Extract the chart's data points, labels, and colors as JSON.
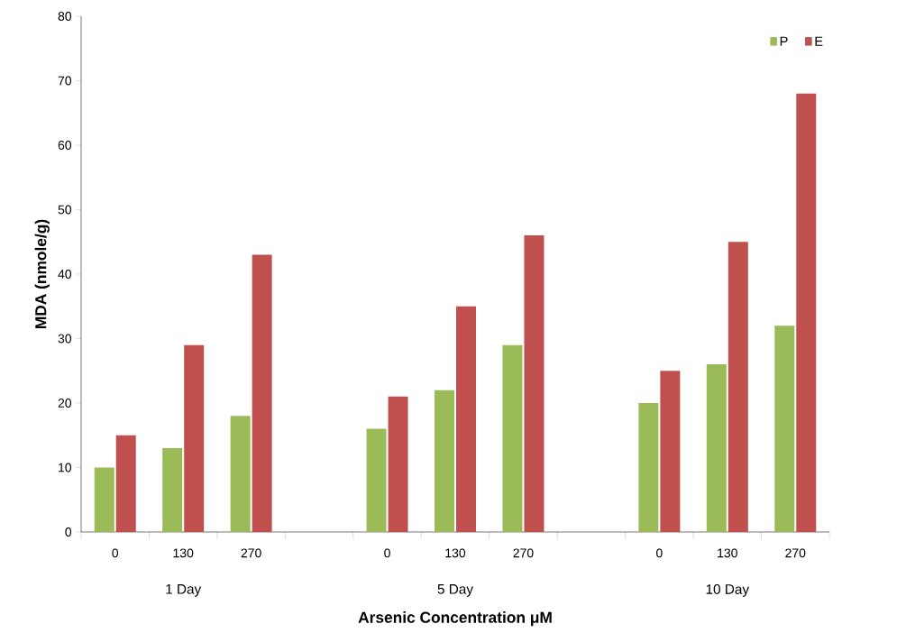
{
  "chart_data": {
    "type": "bar",
    "xlabel": "Arsenic Concentration μM",
    "ylabel": "MDA (nmole/g)",
    "categories": [
      "0",
      "130",
      "270",
      null,
      "0",
      "130",
      "270",
      null,
      "0",
      "130",
      "270"
    ],
    "series": [
      {
        "name": "P",
        "color": "#9bbb59",
        "values": [
          10,
          13,
          18,
          null,
          16,
          22,
          29,
          null,
          20,
          26,
          32
        ]
      },
      {
        "name": "E",
        "color": "#c0504d",
        "values": [
          15,
          29,
          43,
          null,
          21,
          35,
          46,
          null,
          25,
          45,
          68
        ]
      }
    ],
    "ylim": [
      0,
      80
    ],
    "yticks": [
      0,
      10,
      20,
      30,
      40,
      50,
      60,
      70,
      80
    ],
    "annotations": [
      "1 Day",
      "5 Day",
      "10 Day"
    ],
    "legend": "top right",
    "grid": false
  }
}
